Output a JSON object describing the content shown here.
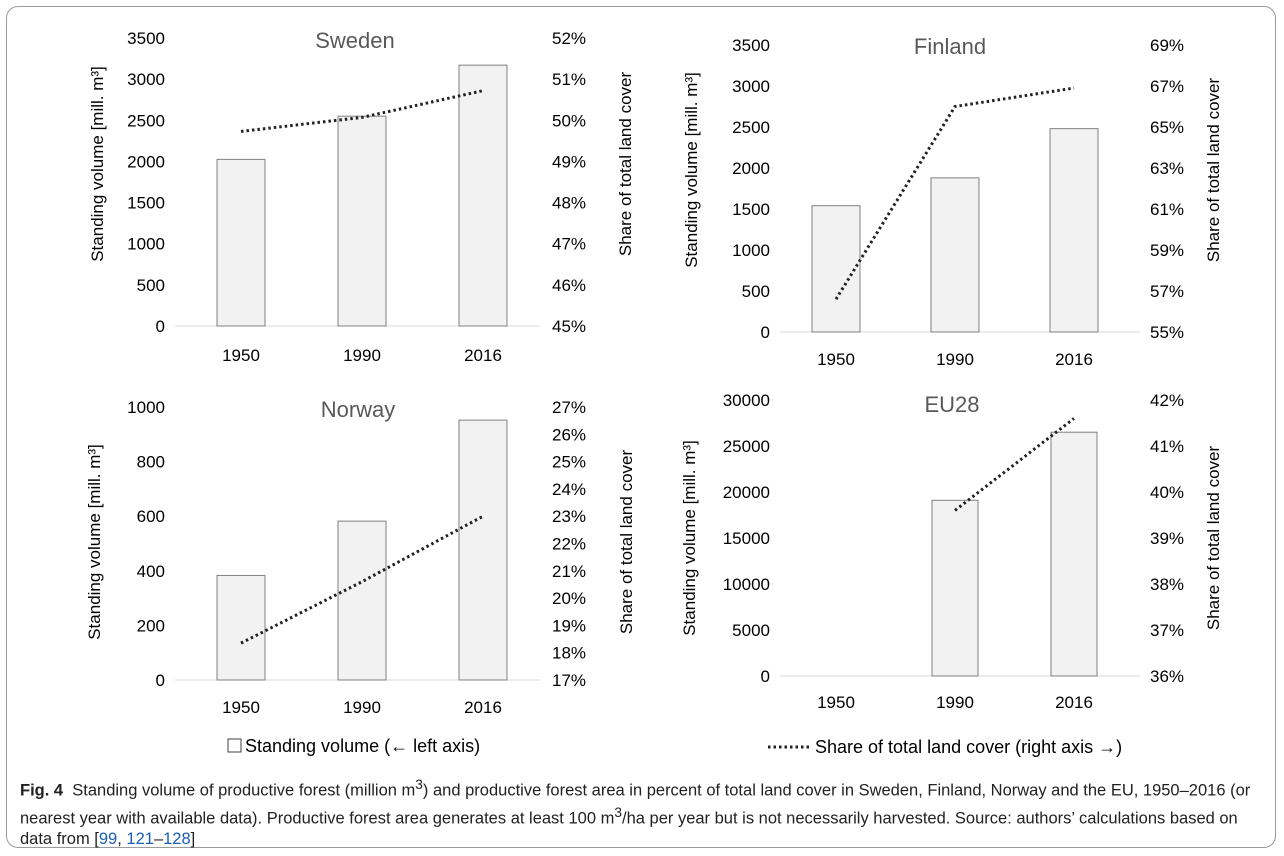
{
  "theme": {
    "bar_fill": "#f2f2f2",
    "bar_stroke": "#808080",
    "line_color": "#222222",
    "title_color": "#595959"
  },
  "legend": {
    "bar_label": "Standing volume (← left axis)",
    "line_label": "Share of total land cover (right axis →)"
  },
  "caption": {
    "fig_label": "Fig. 4",
    "text_1": "Standing volume of productive forest (million m",
    "sup_1": "3",
    "text_2": ") and productive forest area in percent of total land cover in Sweden, Finland, Norway and the EU, 1950–2016 (or nearest year with available data). Productive forest area generates at least 100 m",
    "sup_2": "3",
    "text_3": "/ha per year but is not necessarily harvested. Source: authors’ calculations based on data from [",
    "ref_1": "99",
    "sep_1": ", ",
    "ref_2": "121",
    "dash": "–",
    "ref_3": "128",
    "close": "]"
  },
  "chart_data": [
    {
      "type": "bar",
      "title": "Sweden",
      "categories": [
        "1950",
        "1990",
        "2016"
      ],
      "ylabel": "Standing volume [mill. m³]",
      "y2label": "Share of total land cover",
      "ylim": [
        0,
        3500
      ],
      "yticks": [
        0,
        500,
        1000,
        1500,
        2000,
        2500,
        3000,
        3500
      ],
      "y2lim": [
        45,
        52
      ],
      "y2ticks": [
        45,
        46,
        47,
        48,
        49,
        50,
        51,
        52
      ],
      "series": [
        {
          "name": "Standing volume",
          "kind": "bar",
          "axis": "left",
          "values": [
            2025,
            2550,
            3170
          ]
        },
        {
          "name": "Share of total land cover",
          "kind": "line",
          "axis": "right",
          "values": [
            49.73,
            50.07,
            50.72
          ]
        }
      ]
    },
    {
      "type": "bar",
      "title": "Finland",
      "categories": [
        "1950",
        "1990",
        "2016"
      ],
      "ylabel": "Standing volume [mill. m³]",
      "y2label": "Share of total land cover",
      "ylim": [
        0,
        3500
      ],
      "yticks": [
        0,
        500,
        1000,
        1500,
        2000,
        2500,
        3000,
        3500
      ],
      "y2lim": [
        55,
        69
      ],
      "y2ticks": [
        55,
        57,
        59,
        61,
        63,
        65,
        67,
        69
      ],
      "series": [
        {
          "name": "Standing volume",
          "kind": "bar",
          "axis": "left",
          "values": [
            1540,
            1880,
            2480
          ]
        },
        {
          "name": "Share of total land cover",
          "kind": "line",
          "axis": "right",
          "values": [
            56.6,
            66.0,
            66.9
          ]
        }
      ]
    },
    {
      "type": "bar",
      "title": "Norway",
      "categories": [
        "1950",
        "1990",
        "2016"
      ],
      "ylabel": "Standing volume [mill. m³]",
      "y2label": "Share of total land cover",
      "ylim": [
        0,
        1000
      ],
      "yticks": [
        0,
        200,
        400,
        600,
        800,
        1000
      ],
      "y2lim": [
        17,
        27
      ],
      "y2ticks": [
        17,
        18,
        19,
        20,
        21,
        22,
        23,
        24,
        25,
        26,
        27
      ],
      "series": [
        {
          "name": "Standing volume",
          "kind": "bar",
          "axis": "left",
          "values": [
            383,
            582,
            952
          ]
        },
        {
          "name": "Share of total land cover",
          "kind": "line",
          "axis": "right",
          "values": [
            18.35,
            20.6,
            23.0
          ]
        }
      ]
    },
    {
      "type": "bar",
      "title": "EU28",
      "categories": [
        "1950",
        "1990",
        "2016"
      ],
      "ylabel": "Standing volume [mill. m³]",
      "y2label": "Share of total land cover",
      "ylim": [
        0,
        30000
      ],
      "yticks": [
        0,
        5000,
        10000,
        15000,
        20000,
        25000,
        30000
      ],
      "y2lim": [
        36,
        42
      ],
      "y2ticks": [
        36,
        37,
        38,
        39,
        40,
        41,
        42
      ],
      "series": [
        {
          "name": "Standing volume",
          "kind": "bar",
          "axis": "left",
          "values": [
            null,
            19100,
            26500
          ]
        },
        {
          "name": "Share of total land cover",
          "kind": "line",
          "axis": "right",
          "values": [
            null,
            39.6,
            41.6
          ]
        }
      ]
    }
  ]
}
